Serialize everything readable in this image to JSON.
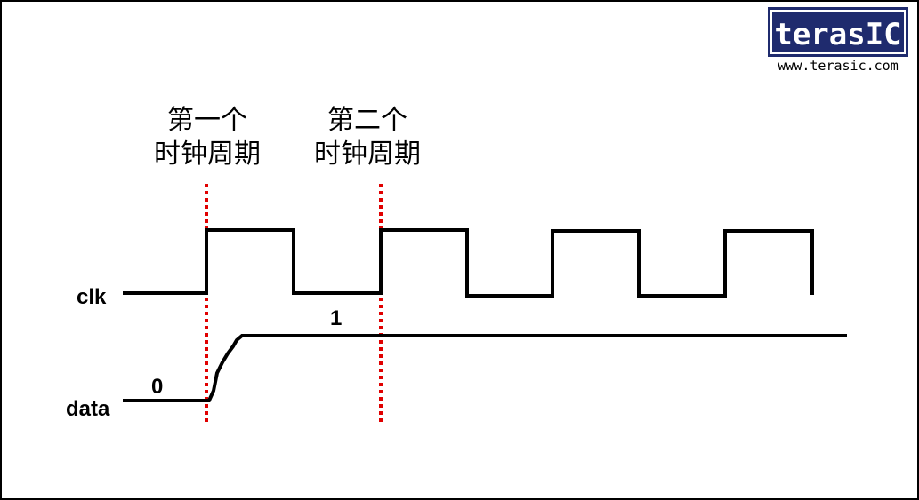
{
  "annotations": [
    {
      "lines": [
        "第一个",
        "时钟周期"
      ]
    },
    {
      "lines": [
        "第二个",
        "时钟周期"
      ]
    }
  ],
  "signals": [
    {
      "name": "clk"
    },
    {
      "name": "data",
      "values": [
        0,
        1
      ]
    }
  ],
  "logo": {
    "brand": "terasIC",
    "url": "www.terasic.com"
  }
}
